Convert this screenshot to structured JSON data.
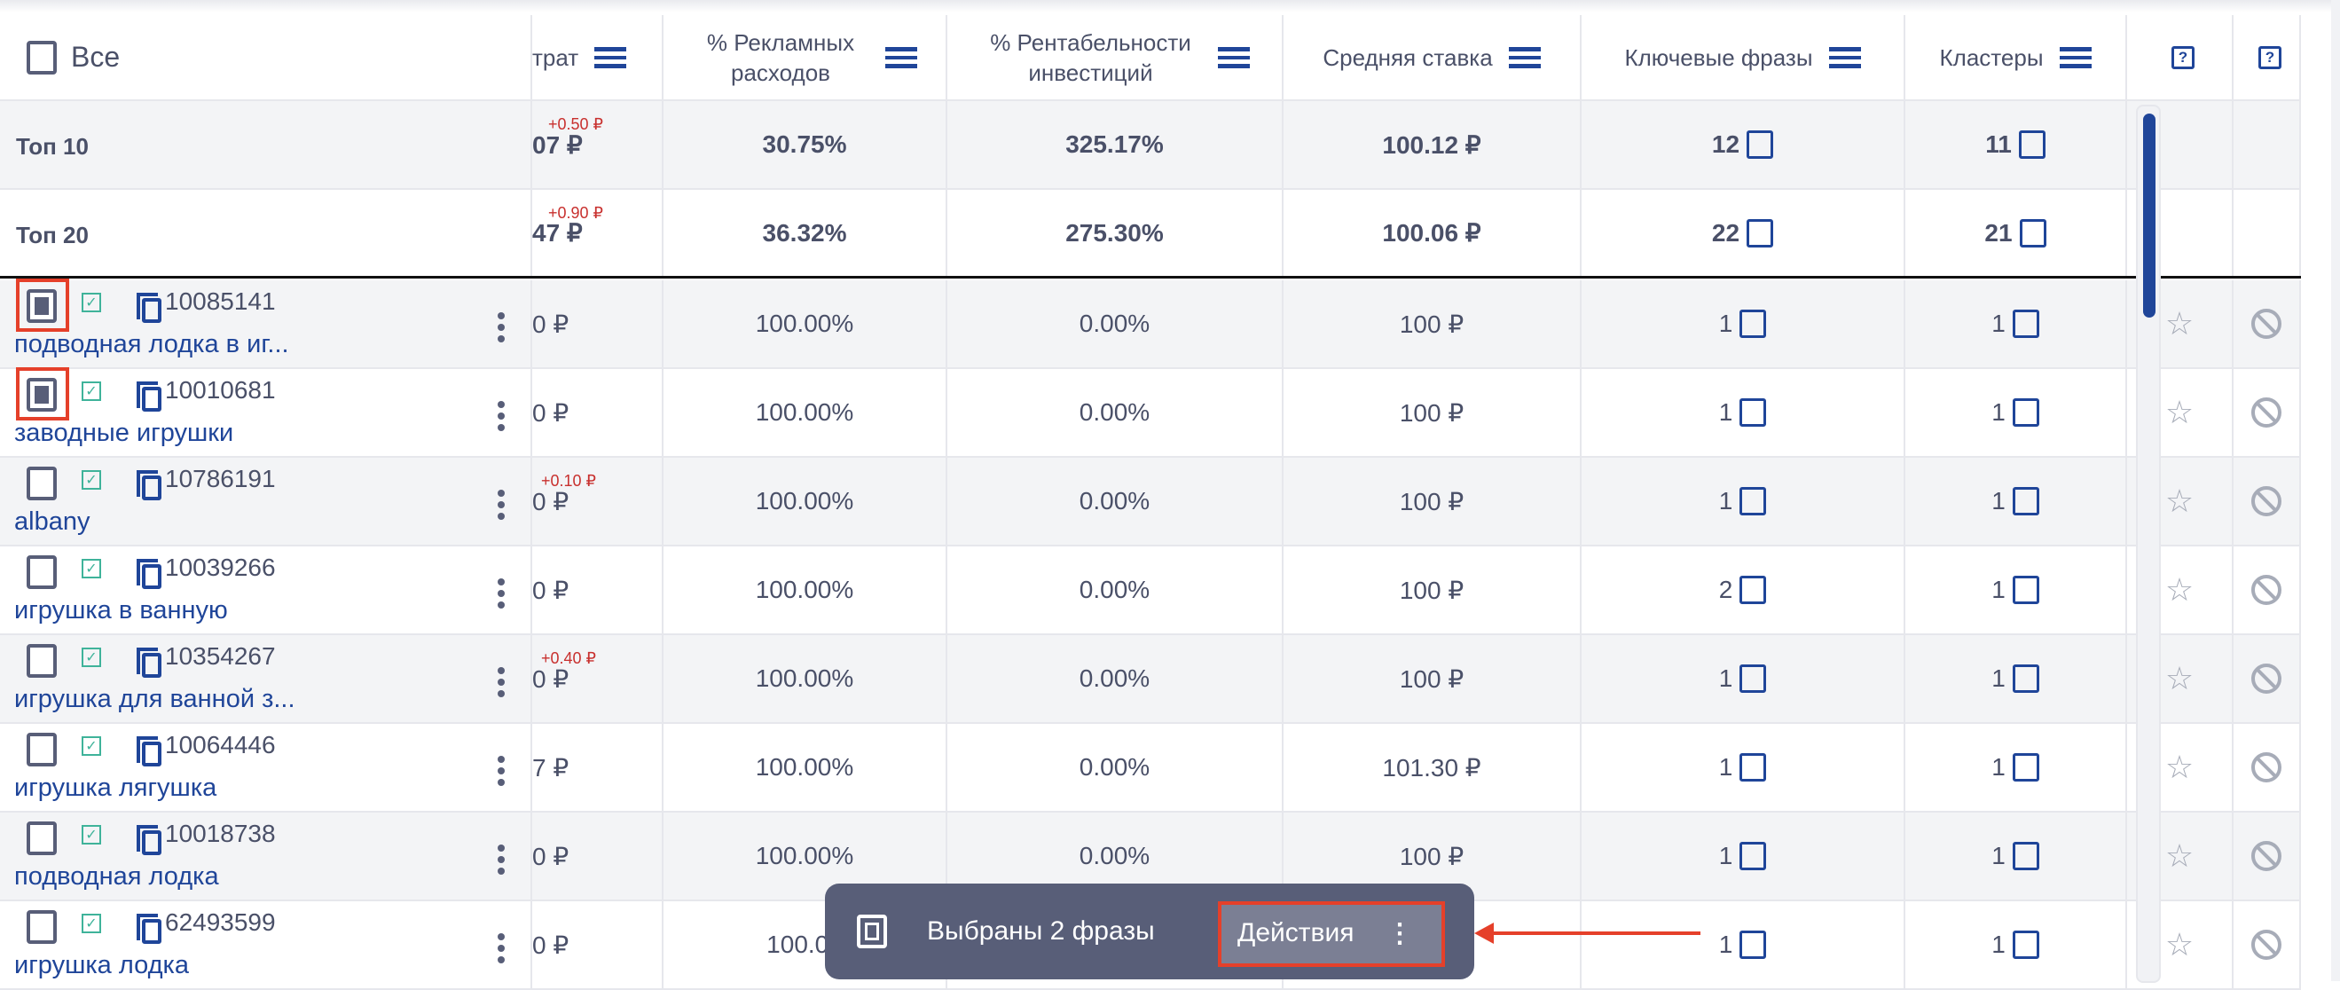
{
  "header": {
    "select_all": "Все",
    "columns": [
      "трат",
      "% Рекламных расходов",
      "% Рентабельности инвестиций",
      "Средняя ставка",
      "Ключевые фразы",
      "Кластеры"
    ],
    "help_icons": [
      "help-icon",
      "help-icon"
    ]
  },
  "summary": [
    {
      "label": "Топ 10",
      "spend": "07 ₽",
      "delta": "+0.50 ₽",
      "ad_pct": "30.75%",
      "roi_pct": "325.17%",
      "avg_bid": "100.12 ₽",
      "keywords": "12",
      "clusters": "11"
    },
    {
      "label": "Топ 20",
      "spend": "47 ₽",
      "delta": "+0.90 ₽",
      "ad_pct": "36.32%",
      "roi_pct": "275.30%",
      "avg_bid": "100.06 ₽",
      "keywords": "22",
      "clusters": "21"
    }
  ],
  "rows": [
    {
      "id": "10085141",
      "name": "подводная лодка в иг...",
      "checked": true,
      "spend": "0 ₽",
      "delta": "",
      "ad_pct": "100.00%",
      "roi_pct": "0.00%",
      "avg_bid": "100 ₽",
      "keywords": "1",
      "clusters": "1"
    },
    {
      "id": "10010681",
      "name": "заводные игрушки",
      "checked": true,
      "spend": "0 ₽",
      "delta": "",
      "ad_pct": "100.00%",
      "roi_pct": "0.00%",
      "avg_bid": "100 ₽",
      "keywords": "1",
      "clusters": "1"
    },
    {
      "id": "10786191",
      "name": "albany",
      "checked": false,
      "spend": "0 ₽",
      "delta": "+0.10 ₽",
      "ad_pct": "100.00%",
      "roi_pct": "0.00%",
      "avg_bid": "100 ₽",
      "keywords": "1",
      "clusters": "1"
    },
    {
      "id": "10039266",
      "name": "игрушка в ванную",
      "checked": false,
      "spend": "0 ₽",
      "delta": "",
      "ad_pct": "100.00%",
      "roi_pct": "0.00%",
      "avg_bid": "100 ₽",
      "keywords": "2",
      "clusters": "1"
    },
    {
      "id": "10354267",
      "name": "игрушка для ванной з...",
      "checked": false,
      "spend": "0 ₽",
      "delta": "+0.40 ₽",
      "ad_pct": "100.00%",
      "roi_pct": "0.00%",
      "avg_bid": "100 ₽",
      "keywords": "1",
      "clusters": "1"
    },
    {
      "id": "10064446",
      "name": "игрушка лягушка",
      "checked": false,
      "spend": "7 ₽",
      "delta": "",
      "ad_pct": "100.00%",
      "roi_pct": "0.00%",
      "avg_bid": "101.30 ₽",
      "keywords": "1",
      "clusters": "1"
    },
    {
      "id": "10018738",
      "name": "подводная лодка",
      "checked": false,
      "spend": "0 ₽",
      "delta": "",
      "ad_pct": "100.00%",
      "roi_pct": "0.00%",
      "avg_bid": "100 ₽",
      "keywords": "1",
      "clusters": "1"
    },
    {
      "id": "62493599",
      "name": "игрушка лодка",
      "checked": false,
      "spend": "0 ₽",
      "delta": "",
      "ad_pct": "100.00",
      "roi_pct": "",
      "avg_bid": "",
      "keywords": "1",
      "clusters": "1"
    }
  ],
  "selection_bar": {
    "text": "Выбраны 2 фразы",
    "actions_label": "Действия"
  },
  "colors": {
    "accent": "#1f4599",
    "highlight": "#e5402a",
    "delta": "#c8302e",
    "bar": "#585e78"
  }
}
